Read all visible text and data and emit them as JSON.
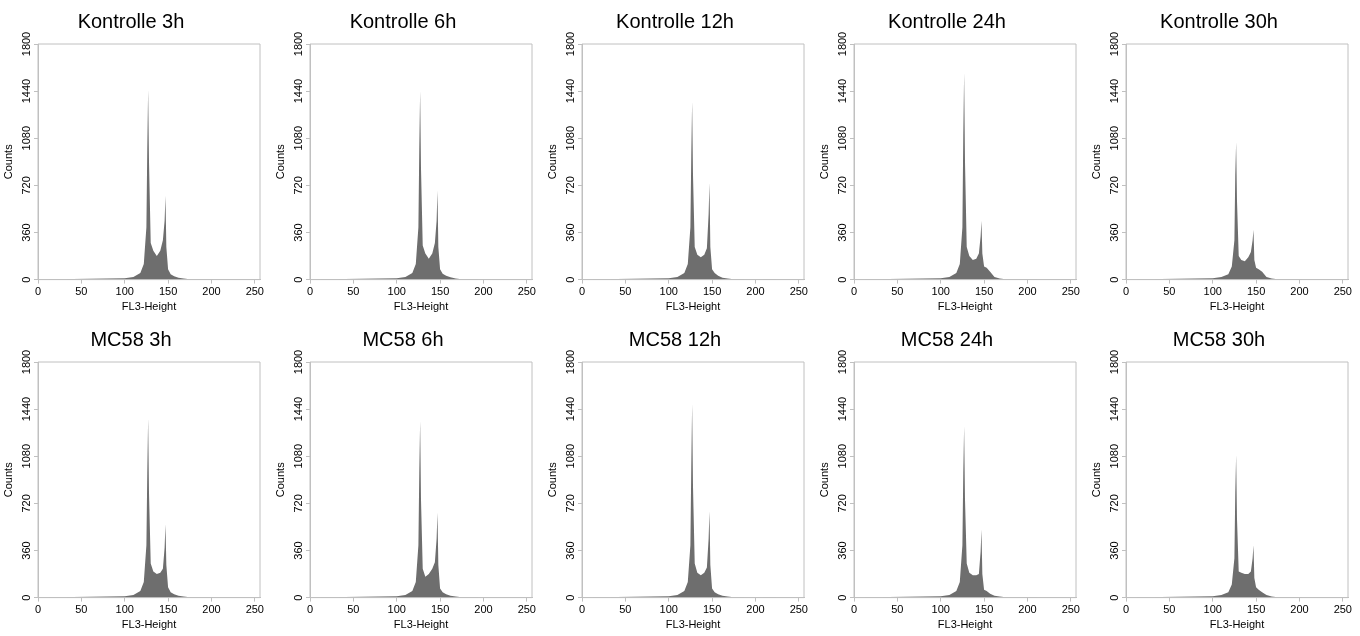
{
  "chart_data": [
    {
      "type": "area",
      "title": "Kontrolle 3h",
      "xlabel": "FL3-Height",
      "ylabel": "Counts",
      "xlim": [
        0,
        256
      ],
      "xticks": [
        0,
        50,
        100,
        150,
        200,
        250
      ],
      "ylim": [
        0,
        1800
      ],
      "yticks": [
        0,
        360,
        720,
        1080,
        1440,
        1800
      ],
      "color": "#6e6e6e",
      "legend": false,
      "x": [
        0,
        100,
        110,
        118,
        122,
        125,
        126,
        127,
        128,
        130,
        133,
        137,
        141,
        144,
        146,
        147,
        148,
        150,
        153,
        157,
        162,
        168,
        175,
        256
      ],
      "values": [
        0,
        10,
        20,
        50,
        120,
        400,
        1000,
        1450,
        900,
        280,
        220,
        180,
        220,
        300,
        450,
        640,
        250,
        80,
        40,
        25,
        15,
        8,
        3,
        0
      ]
    },
    {
      "type": "area",
      "title": "Kontrolle 6h",
      "xlabel": "FL3-Height",
      "ylabel": "Counts",
      "xlim": [
        0,
        256
      ],
      "xticks": [
        0,
        50,
        100,
        150,
        200,
        250
      ],
      "ylim": [
        0,
        1800
      ],
      "yticks": [
        0,
        360,
        720,
        1080,
        1440,
        1800
      ],
      "color": "#6e6e6e",
      "legend": false,
      "x": [
        0,
        100,
        110,
        118,
        122,
        125,
        126,
        127,
        128,
        130,
        133,
        137,
        141,
        144,
        146,
        147,
        148,
        150,
        153,
        157,
        162,
        168,
        175,
        256
      ],
      "values": [
        0,
        10,
        20,
        50,
        120,
        400,
        1000,
        1440,
        850,
        260,
        200,
        160,
        200,
        280,
        450,
        680,
        250,
        80,
        45,
        30,
        18,
        8,
        3,
        0
      ]
    },
    {
      "type": "area",
      "title": "Kontrolle 12h",
      "xlabel": "FL3-Height",
      "ylabel": "Counts",
      "xlim": [
        0,
        256
      ],
      "xticks": [
        0,
        50,
        100,
        150,
        200,
        250
      ],
      "ylim": [
        0,
        1800
      ],
      "yticks": [
        0,
        360,
        720,
        1080,
        1440,
        1800
      ],
      "color": "#6e6e6e",
      "legend": false,
      "x": [
        0,
        100,
        110,
        118,
        122,
        125,
        126,
        127,
        128,
        130,
        133,
        137,
        141,
        144,
        146,
        147,
        148,
        150,
        153,
        157,
        162,
        168,
        175,
        256
      ],
      "values": [
        0,
        10,
        20,
        50,
        120,
        400,
        950,
        1360,
        800,
        250,
        190,
        170,
        190,
        240,
        500,
        740,
        250,
        80,
        50,
        30,
        15,
        8,
        3,
        0
      ]
    },
    {
      "type": "area",
      "title": "Kontrolle 24h",
      "xlabel": "FL3-Height",
      "ylabel": "Counts",
      "xlim": [
        0,
        256
      ],
      "xticks": [
        0,
        50,
        100,
        150,
        200,
        250
      ],
      "ylim": [
        0,
        1800
      ],
      "yticks": [
        0,
        360,
        720,
        1080,
        1440,
        1800
      ],
      "color": "#6e6e6e",
      "legend": false,
      "x": [
        0,
        100,
        110,
        118,
        122,
        125,
        126,
        127,
        128,
        130,
        133,
        137,
        141,
        144,
        146,
        147,
        148,
        150,
        153,
        157,
        162,
        168,
        175,
        256
      ],
      "values": [
        0,
        10,
        20,
        50,
        120,
        400,
        1100,
        1580,
        900,
        250,
        180,
        150,
        160,
        200,
        330,
        450,
        200,
        100,
        90,
        60,
        20,
        8,
        3,
        0
      ]
    },
    {
      "type": "area",
      "title": "Kontrolle 30h",
      "xlabel": "FL3-Height",
      "ylabel": "Counts",
      "xlim": [
        0,
        256
      ],
      "xticks": [
        0,
        50,
        100,
        150,
        200,
        250
      ],
      "ylim": [
        0,
        1800
      ],
      "yticks": [
        0,
        360,
        720,
        1080,
        1440,
        1800
      ],
      "color": "#6e6e6e",
      "legend": false,
      "x": [
        0,
        100,
        110,
        118,
        122,
        125,
        126,
        127,
        128,
        130,
        133,
        137,
        141,
        144,
        146,
        147,
        148,
        150,
        153,
        157,
        162,
        168,
        175,
        256
      ],
      "values": [
        0,
        10,
        20,
        40,
        100,
        300,
        800,
        1050,
        600,
        180,
        150,
        140,
        170,
        210,
        300,
        380,
        150,
        90,
        80,
        60,
        20,
        8,
        3,
        0
      ]
    },
    {
      "type": "area",
      "title": "MC58 3h",
      "xlabel": "FL3-Height",
      "ylabel": "Counts",
      "xlim": [
        0,
        256
      ],
      "xticks": [
        0,
        50,
        100,
        150,
        200,
        250
      ],
      "ylim": [
        0,
        1800
      ],
      "yticks": [
        0,
        360,
        720,
        1080,
        1440,
        1800
      ],
      "color": "#6e6e6e",
      "legend": false,
      "x": [
        0,
        100,
        110,
        118,
        122,
        125,
        126,
        127,
        128,
        130,
        133,
        137,
        141,
        144,
        146,
        147,
        148,
        150,
        153,
        157,
        162,
        168,
        175,
        256
      ],
      "values": [
        0,
        10,
        20,
        50,
        120,
        400,
        950,
        1370,
        800,
        260,
        200,
        180,
        190,
        220,
        380,
        560,
        250,
        80,
        40,
        25,
        15,
        8,
        3,
        0
      ]
    },
    {
      "type": "area",
      "title": "MC58 6h",
      "xlabel": "FL3-Height",
      "ylabel": "Counts",
      "xlim": [
        0,
        256
      ],
      "xticks": [
        0,
        50,
        100,
        150,
        200,
        250
      ],
      "ylim": [
        0,
        1800
      ],
      "yticks": [
        0,
        360,
        720,
        1080,
        1440,
        1800
      ],
      "color": "#6e6e6e",
      "legend": false,
      "x": [
        0,
        100,
        110,
        118,
        122,
        125,
        126,
        127,
        128,
        130,
        133,
        137,
        141,
        144,
        146,
        147,
        148,
        150,
        153,
        157,
        162,
        168,
        175,
        256
      ],
      "values": [
        0,
        10,
        20,
        50,
        120,
        400,
        950,
        1350,
        750,
        220,
        160,
        180,
        220,
        270,
        450,
        650,
        250,
        70,
        40,
        25,
        15,
        8,
        3,
        0
      ]
    },
    {
      "type": "area",
      "title": "MC58 12h",
      "xlabel": "FL3-Height",
      "ylabel": "Counts",
      "xlim": [
        0,
        256
      ],
      "xticks": [
        0,
        50,
        100,
        150,
        200,
        250
      ],
      "ylim": [
        0,
        1800
      ],
      "yticks": [
        0,
        360,
        720,
        1080,
        1440,
        1800
      ],
      "color": "#6e6e6e",
      "legend": false,
      "x": [
        0,
        100,
        110,
        118,
        122,
        125,
        126,
        127,
        128,
        130,
        133,
        137,
        141,
        144,
        146,
        147,
        148,
        150,
        153,
        157,
        162,
        168,
        175,
        256
      ],
      "values": [
        0,
        10,
        20,
        50,
        120,
        400,
        1000,
        1480,
        850,
        260,
        190,
        170,
        190,
        230,
        450,
        660,
        250,
        70,
        40,
        25,
        15,
        8,
        3,
        0
      ]
    },
    {
      "type": "area",
      "title": "MC58 24h",
      "xlabel": "FL3-Height",
      "ylabel": "Counts",
      "xlim": [
        0,
        256
      ],
      "xticks": [
        0,
        50,
        100,
        150,
        200,
        250
      ],
      "ylim": [
        0,
        1800
      ],
      "yticks": [
        0,
        360,
        720,
        1080,
        1440,
        1800
      ],
      "color": "#6e6e6e",
      "legend": false,
      "x": [
        0,
        100,
        110,
        118,
        122,
        125,
        126,
        127,
        128,
        130,
        133,
        137,
        141,
        144,
        146,
        147,
        148,
        150,
        153,
        157,
        162,
        168,
        175,
        256
      ],
      "values": [
        0,
        10,
        20,
        50,
        120,
        400,
        950,
        1310,
        750,
        260,
        190,
        170,
        170,
        180,
        350,
        520,
        180,
        60,
        50,
        30,
        15,
        8,
        3,
        0
      ]
    },
    {
      "type": "area",
      "title": "MC58 30h",
      "xlabel": "FL3-Height",
      "ylabel": "Counts",
      "xlim": [
        0,
        256
      ],
      "xticks": [
        0,
        50,
        100,
        150,
        200,
        250
      ],
      "ylim": [
        0,
        1800
      ],
      "yticks": [
        0,
        360,
        720,
        1080,
        1440,
        1800
      ],
      "color": "#6e6e6e",
      "legend": false,
      "x": [
        0,
        100,
        110,
        118,
        122,
        125,
        126,
        127,
        128,
        130,
        133,
        137,
        141,
        144,
        146,
        147,
        148,
        150,
        153,
        157,
        162,
        168,
        175,
        256
      ],
      "values": [
        0,
        10,
        20,
        40,
        100,
        300,
        800,
        1090,
        600,
        200,
        190,
        180,
        180,
        200,
        300,
        400,
        150,
        80,
        60,
        40,
        20,
        8,
        3,
        0
      ]
    }
  ]
}
